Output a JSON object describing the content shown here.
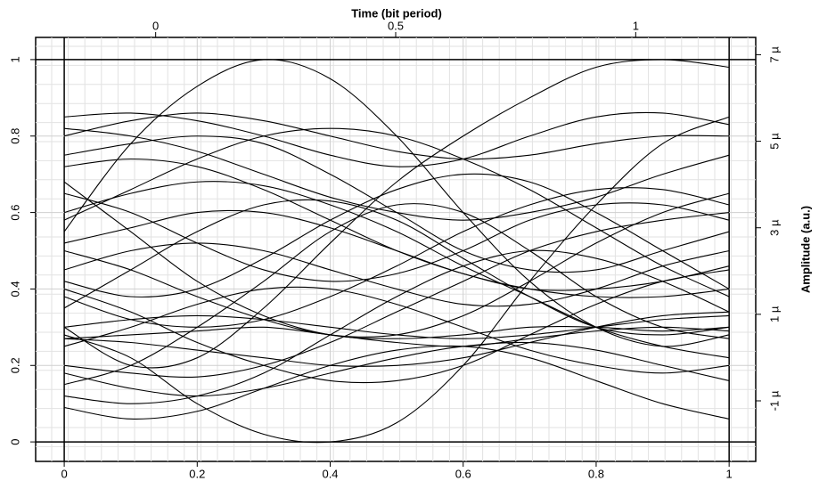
{
  "chart_data": {
    "type": "line",
    "x_label_top": "Time (bit period)",
    "y2_label": "Amplitude (a.u.)",
    "color": "#000000",
    "grid": true,
    "x": [
      0,
      0.1,
      0.2,
      0.3,
      0.4,
      0.5,
      0.6,
      0.7,
      0.8,
      0.9,
      1
    ],
    "xlim": [
      -0.043,
      1.04
    ],
    "ylim": [
      -0.051,
      1.058
    ],
    "xticks": [
      0,
      0.2,
      0.4,
      0.6,
      0.8,
      1
    ],
    "yticks": [
      0,
      0.2,
      0.4,
      0.6,
      0.8,
      1
    ],
    "x2lim": [
      -0.25,
      1.25
    ],
    "x2ticks": [
      0,
      0.5,
      1
    ],
    "y2lim": [
      -2.4e-06,
      7.4e-06
    ],
    "y2ticks": [
      {
        "value": -1e-06,
        "label": "-1 µ"
      },
      {
        "value": 1e-06,
        "label": "1 µ"
      },
      {
        "value": 3e-06,
        "label": "3 µ"
      },
      {
        "value": 5e-06,
        "label": "5 µ"
      },
      {
        "value": 7e-06,
        "label": "7 µ"
      }
    ],
    "series": [
      {
        "values": [
          0.28,
          0.22,
          0.1,
          0.02,
          0.0,
          0.05,
          0.2,
          0.42,
          0.62,
          0.78,
          0.85
        ]
      },
      {
        "values": [
          0.55,
          0.78,
          0.93,
          1.0,
          0.95,
          0.8,
          0.6,
          0.42,
          0.3,
          0.25,
          0.28
        ]
      },
      {
        "values": [
          0.3,
          0.2,
          0.22,
          0.35,
          0.52,
          0.68,
          0.8,
          0.9,
          0.98,
          1.0,
          0.98
        ]
      },
      {
        "values": [
          0.85,
          0.86,
          0.84,
          0.8,
          0.75,
          0.72,
          0.74,
          0.8,
          0.85,
          0.86,
          0.83
        ]
      },
      {
        "values": [
          0.68,
          0.55,
          0.42,
          0.33,
          0.28,
          0.27,
          0.28,
          0.3,
          0.3,
          0.29,
          0.3
        ]
      },
      {
        "values": [
          0.27,
          0.28,
          0.29,
          0.3,
          0.28,
          0.26,
          0.25,
          0.27,
          0.29,
          0.3,
          0.29
        ]
      },
      {
        "values": [
          0.15,
          0.2,
          0.3,
          0.42,
          0.55,
          0.62,
          0.6,
          0.5,
          0.38,
          0.3,
          0.27
        ]
      },
      {
        "values": [
          0.6,
          0.65,
          0.68,
          0.67,
          0.62,
          0.55,
          0.46,
          0.38,
          0.3,
          0.25,
          0.22
        ]
      },
      {
        "values": [
          0.42,
          0.38,
          0.4,
          0.48,
          0.58,
          0.66,
          0.7,
          0.68,
          0.6,
          0.5,
          0.4
        ]
      },
      {
        "values": [
          0.75,
          0.78,
          0.8,
          0.78,
          0.7,
          0.6,
          0.5,
          0.45,
          0.45,
          0.5,
          0.55
        ]
      },
      {
        "values": [
          0.2,
          0.18,
          0.17,
          0.2,
          0.26,
          0.34,
          0.42,
          0.5,
          0.55,
          0.58,
          0.6
        ]
      },
      {
        "values": [
          0.09,
          0.06,
          0.08,
          0.14,
          0.2,
          0.24,
          0.25,
          0.22,
          0.16,
          0.1,
          0.06
        ]
      },
      {
        "values": [
          0.5,
          0.45,
          0.38,
          0.32,
          0.28,
          0.28,
          0.33,
          0.42,
          0.52,
          0.6,
          0.65
        ]
      },
      {
        "values": [
          0.35,
          0.45,
          0.55,
          0.62,
          0.63,
          0.58,
          0.48,
          0.38,
          0.3,
          0.28,
          0.3
        ]
      },
      {
        "values": [
          0.82,
          0.8,
          0.76,
          0.7,
          0.64,
          0.6,
          0.58,
          0.6,
          0.64,
          0.7,
          0.75
        ]
      },
      {
        "values": [
          0.25,
          0.3,
          0.36,
          0.4,
          0.4,
          0.36,
          0.3,
          0.24,
          0.2,
          0.18,
          0.2
        ]
      },
      {
        "values": [
          0.45,
          0.5,
          0.52,
          0.5,
          0.45,
          0.4,
          0.36,
          0.36,
          0.4,
          0.46,
          0.5
        ]
      },
      {
        "values": [
          0.65,
          0.6,
          0.52,
          0.45,
          0.42,
          0.44,
          0.5,
          0.58,
          0.62,
          0.62,
          0.58
        ]
      },
      {
        "values": [
          0.18,
          0.14,
          0.12,
          0.14,
          0.18,
          0.22,
          0.25,
          0.26,
          0.24,
          0.2,
          0.16
        ]
      },
      {
        "values": [
          0.38,
          0.32,
          0.3,
          0.32,
          0.38,
          0.46,
          0.55,
          0.62,
          0.66,
          0.66,
          0.62
        ]
      },
      {
        "values": [
          0.58,
          0.66,
          0.74,
          0.8,
          0.82,
          0.8,
          0.74,
          0.66,
          0.56,
          0.46,
          0.38
        ]
      },
      {
        "values": [
          0.27,
          0.26,
          0.24,
          0.22,
          0.2,
          0.2,
          0.22,
          0.26,
          0.3,
          0.33,
          0.34
        ]
      },
      {
        "values": [
          0.72,
          0.74,
          0.72,
          0.66,
          0.58,
          0.5,
          0.44,
          0.4,
          0.4,
          0.42,
          0.46
        ]
      },
      {
        "values": [
          0.12,
          0.1,
          0.12,
          0.18,
          0.28,
          0.38,
          0.46,
          0.5,
          0.48,
          0.42,
          0.34
        ]
      },
      {
        "values": [
          0.52,
          0.56,
          0.6,
          0.6,
          0.56,
          0.5,
          0.44,
          0.4,
          0.38,
          0.38,
          0.4
        ]
      },
      {
        "values": [
          0.3,
          0.32,
          0.33,
          0.32,
          0.3,
          0.28,
          0.27,
          0.28,
          0.3,
          0.32,
          0.33
        ]
      },
      {
        "values": [
          0.8,
          0.84,
          0.86,
          0.84,
          0.8,
          0.76,
          0.74,
          0.75,
          0.78,
          0.8,
          0.8
        ]
      },
      {
        "values": [
          0.4,
          0.34,
          0.26,
          0.2,
          0.16,
          0.16,
          0.2,
          0.28,
          0.36,
          0.42,
          0.45
        ]
      }
    ]
  }
}
